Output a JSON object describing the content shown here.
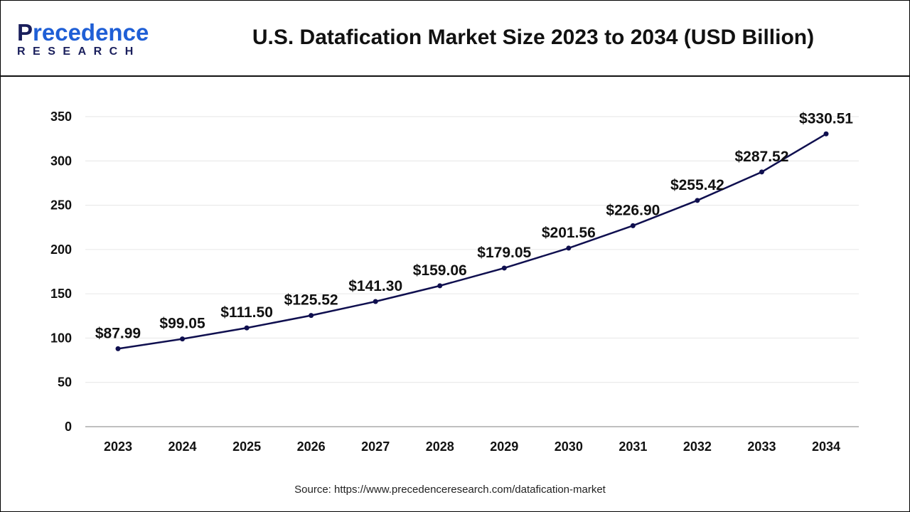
{
  "header": {
    "logo_text_top": "Precedence",
    "logo_text_bottom": "RESEARCH",
    "title": "U.S. Datafication Market Size 2023 to 2034 (USD Billion)"
  },
  "source": "Source: https://www.precedenceresearch.com/datafication-market",
  "chart_data": {
    "type": "line",
    "title": "U.S. Datafication Market Size 2023 to 2034 (USD Billion)",
    "xlabel": "",
    "ylabel": "",
    "categories": [
      "2023",
      "2024",
      "2025",
      "2026",
      "2027",
      "2028",
      "2029",
      "2030",
      "2031",
      "2032",
      "2033",
      "2034"
    ],
    "values": [
      87.99,
      99.05,
      111.5,
      125.52,
      141.3,
      159.06,
      179.05,
      201.56,
      226.9,
      255.42,
      287.52,
      330.51
    ],
    "data_labels": [
      "$87.99",
      "$99.05",
      "$111.50",
      "$125.52",
      "$141.30",
      "$159.06",
      "$179.05",
      "$201.56",
      "$226.90",
      "$255.42",
      "$287.52",
      "$330.51"
    ],
    "yticks": [
      0,
      50,
      100,
      150,
      200,
      250,
      300,
      350
    ],
    "ylim": [
      0,
      350
    ],
    "grid": true,
    "legend": "none",
    "colors": {
      "line": "#0f0f4f",
      "grid": "#e6e6e6",
      "axis": "#bfbfbf"
    }
  }
}
